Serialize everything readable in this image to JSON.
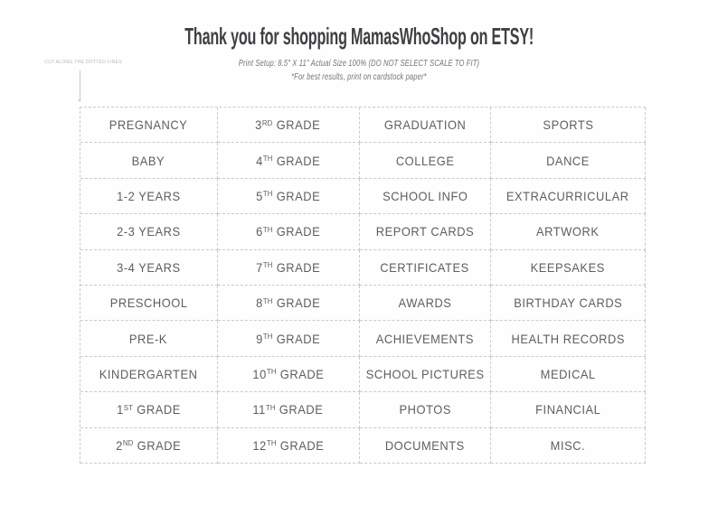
{
  "page": {
    "title": "Thank you for shopping MamasWhoShop on ETSY!",
    "print_note_line1": "Print Setup: 8.5\" X 11\" Actual Size 100% (DO NOT SELECT SCALE TO FIT)",
    "print_note_line2": "*For best results, print on cardstock paper*",
    "cut_note": "CUT ALONG THE DOTTED LINES"
  },
  "colors": {
    "title": "#3f4043",
    "subtitle": "#737477",
    "cell_text": "#5d5e61",
    "dashed_line": "#c9cacb",
    "cut_note": "#b6b7b9",
    "paper": "#fefefe"
  },
  "grid": {
    "rows": 10,
    "columns": 4,
    "cells": [
      "PREGNANCY",
      "3^{RD} GRADE",
      "GRADUATION",
      "SPORTS",
      "BABY",
      "4^{TH} GRADE",
      "COLLEGE",
      "DANCE",
      "1-2 YEARS",
      "5^{TH} GRADE",
      "SCHOOL INFO",
      "EXTRACURRICULAR",
      "2-3 YEARS",
      "6^{TH} GRADE",
      "REPORT CARDS",
      "ARTWORK",
      "3-4 YEARS",
      "7^{TH} GRADE",
      "CERTIFICATES",
      "KEEPSAKES",
      "PRESCHOOL",
      "8^{TH} GRADE",
      "AWARDS",
      "BIRTHDAY CARDS",
      "PRE-K",
      "9^{TH} GRADE",
      "ACHIEVEMENTS",
      "HEALTH RECORDS",
      "KINDERGARTEN",
      "10^{TH} GRADE",
      "SCHOOL PICTURES",
      "MEDICAL",
      "1^{ST} GRADE",
      "11^{TH} GRADE",
      "PHOTOS",
      "FINANCIAL",
      "2^{ND} GRADE",
      "12^{TH} GRADE",
      "DOCUMENTS",
      "MISC."
    ]
  }
}
